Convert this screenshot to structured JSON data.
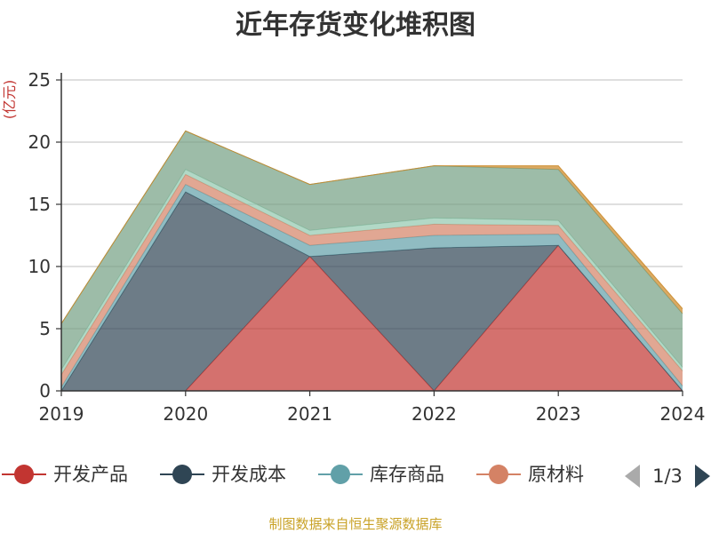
{
  "chart_data": {
    "type": "area",
    "stacked": true,
    "title": "近年存货变化堆积图",
    "ylabel": "(亿元)",
    "xlabel": "",
    "ylim": [
      0,
      25
    ],
    "yticks": [
      0,
      5,
      10,
      15,
      20,
      25
    ],
    "categories": [
      "2019",
      "2020",
      "2021",
      "2022",
      "2023",
      "2024"
    ],
    "grid": true,
    "legend_position": "bottom",
    "series": [
      {
        "name": "开发产品",
        "color": "#c23531",
        "values": [
          0,
          0,
          10.8,
          0,
          11.7,
          0
        ]
      },
      {
        "name": "开发成本",
        "color": "#2f4554",
        "values": [
          0,
          16.0,
          0,
          11.5,
          0,
          0
        ]
      },
      {
        "name": "库存商品",
        "color": "#61a0a8",
        "values": [
          0.3,
          0.6,
          0.9,
          1.0,
          0.9,
          0.4
        ]
      },
      {
        "name": "原材料",
        "color": "#d48265",
        "values": [
          1.0,
          0.8,
          0.8,
          0.9,
          0.7,
          1.2
        ]
      },
      {
        "name": "",
        "color": "#91c7ae",
        "values": [
          0.4,
          0.4,
          0.4,
          0.5,
          0.4,
          0.3
        ]
      },
      {
        "name": "",
        "color": "#749f83",
        "values": [
          3.7,
          3.1,
          3.7,
          4.2,
          4.1,
          4.3
        ]
      },
      {
        "name": "",
        "color": "#ca8622",
        "values": [
          0,
          0,
          0,
          0,
          0.3,
          0.4
        ]
      }
    ]
  },
  "legend": {
    "items": [
      "开发产品",
      "开发成本",
      "库存商品",
      "原材料"
    ],
    "page_label": "1/3"
  },
  "footer": {
    "source": "制图数据来自恒生聚源数据库"
  }
}
